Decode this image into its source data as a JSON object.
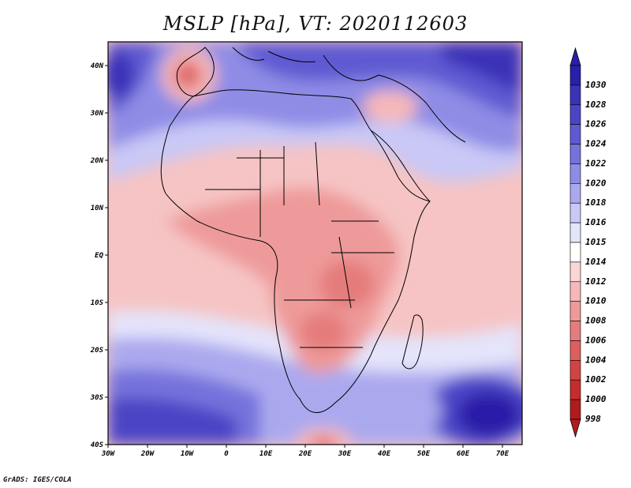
{
  "title": "MSLP [hPa], VT: 2020112603",
  "credit": "GrADS: IGES/COLA",
  "map": {
    "lon_ticks": [
      "30W",
      "20W",
      "10W",
      "0",
      "10E",
      "20E",
      "30E",
      "40E",
      "50E",
      "60E",
      "70E"
    ],
    "lat_ticks": [
      "40N",
      "30N",
      "20N",
      "10N",
      "EQ",
      "10S",
      "20S",
      "30S",
      "40S"
    ],
    "lon_range": [
      -30,
      75
    ],
    "lat_range": [
      -40,
      45
    ]
  },
  "colorbar": {
    "levels": [
      "1030",
      "1028",
      "1026",
      "1024",
      "1022",
      "1020",
      "1018",
      "1016",
      "1015",
      "1014",
      "1012",
      "1010",
      "1008",
      "1006",
      "1004",
      "1002",
      "1000",
      "998"
    ],
    "colors": [
      "#2a1fa8",
      "#3a32b8",
      "#4b45c6",
      "#5e5ad2",
      "#7672dc",
      "#8f8ce6",
      "#aba9ee",
      "#c9c8f6",
      "#e4e4fb",
      "#ffffff",
      "#fbd6d6",
      "#f6b8b8",
      "#ee9a9a",
      "#e57c7c",
      "#dc5f5f",
      "#d24444",
      "#c62c2c",
      "#b01c1c"
    ]
  },
  "colors": {
    "high": "#3a32b8",
    "mid_high": "#8f8ce6",
    "neutral": "#ffffff",
    "mid_low": "#f6b8b8",
    "low": "#e06a6a",
    "coast": "#000000"
  }
}
